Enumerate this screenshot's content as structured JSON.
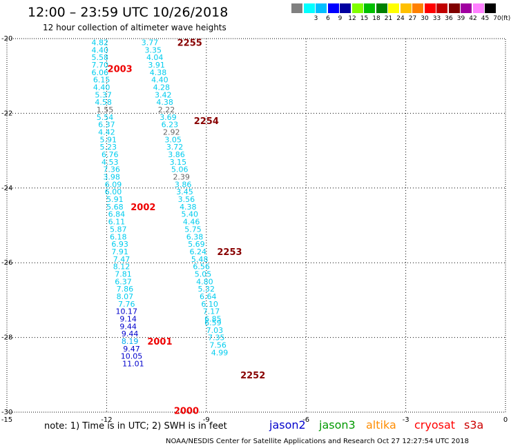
{
  "header": {
    "title": "12:00 – 23:59 UTC 10/26/2018",
    "subtitle": "12 hour collection of altimeter wave heights"
  },
  "legend": {
    "unit": "(ft)",
    "swatches": [
      {
        "color": "#808080",
        "label": ""
      },
      {
        "color": "#00ffff",
        "label": "3"
      },
      {
        "color": "#00bfff",
        "label": "6"
      },
      {
        "color": "#0000ff",
        "label": "9"
      },
      {
        "color": "#0000a0",
        "label": "12"
      },
      {
        "color": "#80ff00",
        "label": "15"
      },
      {
        "color": "#00c000",
        "label": "18"
      },
      {
        "color": "#008000",
        "label": "21"
      },
      {
        "color": "#ffff00",
        "label": "24"
      },
      {
        "color": "#ffc000",
        "label": "27"
      },
      {
        "color": "#ff8000",
        "label": "30"
      },
      {
        "color": "#ff0000",
        "label": "33"
      },
      {
        "color": "#c00000",
        "label": "36"
      },
      {
        "color": "#800000",
        "label": "39"
      },
      {
        "color": "#a000a0",
        "label": "42"
      },
      {
        "color": "#ff80ff",
        "label": "45"
      },
      {
        "color": "#000000",
        "label": "70"
      }
    ]
  },
  "footer": {
    "note": "note: 1) Time is in UTC; 2) SWH is in feet",
    "credit": "NOAA/NESDIS Center for Satellite Applications and Research    Oct 27 12:27:54 UTC 2018",
    "satellites": [
      {
        "name": "jason2",
        "color": "#0000cc"
      },
      {
        "name": "jason3",
        "color": "#009900"
      },
      {
        "name": "altika",
        "color": "#ff8c00"
      },
      {
        "name": "cryosat",
        "color": "#ff0000"
      },
      {
        "name": "s3a",
        "color": "#cc0000"
      }
    ]
  },
  "map": {
    "lon_range": [
      -15,
      0
    ],
    "lat_range": [
      -30,
      -20
    ],
    "lon_ticks": [
      -15,
      -12,
      -9,
      -6,
      -3,
      0
    ],
    "lat_ticks": [
      -20,
      -22,
      -24,
      -26,
      -28,
      -30
    ],
    "grid": "dotted"
  },
  "chart_data": {
    "type": "scatter",
    "title": "12 hour collection of altimeter wave heights",
    "xlim": [
      -15,
      0
    ],
    "ylim": [
      -30,
      -20
    ],
    "tracks": [
      {
        "satellite": "s3a",
        "time_labels": [
          {
            "text": "2003",
            "lon": -11.6,
            "lat": -20.8,
            "color": "#ee0000"
          },
          {
            "text": "2002",
            "lon": -10.9,
            "lat": -24.5,
            "color": "#ee0000"
          },
          {
            "text": "2001",
            "lon": -10.4,
            "lat": -28.1,
            "color": "#ee0000"
          },
          {
            "text": "2000",
            "lon": -9.6,
            "lat": -29.95,
            "color": "#ee0000"
          }
        ],
        "points": [
          {
            "lon": -12.2,
            "lat": -20.1,
            "v": "4.82",
            "c": "#00ccee"
          },
          {
            "lon": -12.2,
            "lat": -20.3,
            "v": "4.40",
            "c": "#00ccee"
          },
          {
            "lon": -12.2,
            "lat": -20.5,
            "v": "5.58",
            "c": "#00ccee"
          },
          {
            "lon": -12.2,
            "lat": -20.7,
            "v": "7.70",
            "c": "#00ccee"
          },
          {
            "lon": -12.2,
            "lat": -20.9,
            "v": "6.06",
            "c": "#00ccee"
          },
          {
            "lon": -12.15,
            "lat": -21.1,
            "v": "6.15",
            "c": "#00ccee"
          },
          {
            "lon": -12.15,
            "lat": -21.3,
            "v": "4.40",
            "c": "#00ccee"
          },
          {
            "lon": -12.1,
            "lat": -21.5,
            "v": "5.37",
            "c": "#00ccee"
          },
          {
            "lon": -12.1,
            "lat": -21.7,
            "v": "4.58",
            "c": "#00ccee"
          },
          {
            "lon": -12.05,
            "lat": -21.9,
            "v": "1.55",
            "c": "#666666"
          },
          {
            "lon": -12.05,
            "lat": -22.1,
            "v": "5.54",
            "c": "#00ccee"
          },
          {
            "lon": -12.0,
            "lat": -22.3,
            "v": "6.37",
            "c": "#00ccee"
          },
          {
            "lon": -12.0,
            "lat": -22.5,
            "v": "4.42",
            "c": "#00ccee"
          },
          {
            "lon": -11.95,
            "lat": -22.7,
            "v": "5.91",
            "c": "#00ccee"
          },
          {
            "lon": -11.95,
            "lat": -22.9,
            "v": "5.23",
            "c": "#00ccee"
          },
          {
            "lon": -11.9,
            "lat": -23.1,
            "v": "6.76",
            "c": "#00ccee"
          },
          {
            "lon": -11.9,
            "lat": -23.3,
            "v": "4.53",
            "c": "#00ccee"
          },
          {
            "lon": -11.85,
            "lat": -23.5,
            "v": "7.36",
            "c": "#00ccee"
          },
          {
            "lon": -11.85,
            "lat": -23.7,
            "v": "3.98",
            "c": "#00ccee"
          },
          {
            "lon": -11.8,
            "lat": -23.9,
            "v": "6.09",
            "c": "#00ccee"
          },
          {
            "lon": -11.8,
            "lat": -24.1,
            "v": "6.00",
            "c": "#00ccee"
          },
          {
            "lon": -11.75,
            "lat": -24.3,
            "v": "5.91",
            "c": "#00ccee"
          },
          {
            "lon": -11.75,
            "lat": -24.5,
            "v": "5.68",
            "c": "#00ccee"
          },
          {
            "lon": -11.7,
            "lat": -24.7,
            "v": "6.84",
            "c": "#00ccee"
          },
          {
            "lon": -11.7,
            "lat": -24.9,
            "v": "6.11",
            "c": "#00ccee"
          },
          {
            "lon": -11.65,
            "lat": -25.1,
            "v": "5.87",
            "c": "#00ccee"
          },
          {
            "lon": -11.65,
            "lat": -25.3,
            "v": "6.18",
            "c": "#00ccee"
          },
          {
            "lon": -11.6,
            "lat": -25.5,
            "v": "6.93",
            "c": "#00ccee"
          },
          {
            "lon": -11.6,
            "lat": -25.7,
            "v": "7.91",
            "c": "#00ccee"
          },
          {
            "lon": -11.55,
            "lat": -25.9,
            "v": "7.47",
            "c": "#00ccee"
          },
          {
            "lon": -11.55,
            "lat": -26.1,
            "v": "8.12",
            "c": "#00ccee"
          },
          {
            "lon": -11.5,
            "lat": -26.3,
            "v": "7.81",
            "c": "#00ccee"
          },
          {
            "lon": -11.5,
            "lat": -26.5,
            "v": "6.37",
            "c": "#00ccee"
          },
          {
            "lon": -11.45,
            "lat": -26.7,
            "v": "7.86",
            "c": "#00ccee"
          },
          {
            "lon": -11.45,
            "lat": -26.9,
            "v": "8.07",
            "c": "#00ccee"
          },
          {
            "lon": -11.4,
            "lat": -27.1,
            "v": "7.76",
            "c": "#00ccee"
          },
          {
            "lon": -11.4,
            "lat": -27.3,
            "v": "10.17",
            "c": "#0000cc"
          },
          {
            "lon": -11.35,
            "lat": -27.5,
            "v": "9.14",
            "c": "#0000cc"
          },
          {
            "lon": -11.35,
            "lat": -27.7,
            "v": "9.44",
            "c": "#0000cc"
          },
          {
            "lon": -11.3,
            "lat": -27.9,
            "v": "9.44",
            "c": "#0000cc"
          },
          {
            "lon": -11.3,
            "lat": -28.1,
            "v": "8.19",
            "c": "#00aaee"
          },
          {
            "lon": -11.25,
            "lat": -28.3,
            "v": "9.47",
            "c": "#0000cc"
          },
          {
            "lon": -11.25,
            "lat": -28.5,
            "v": "10.05",
            "c": "#0000cc"
          },
          {
            "lon": -11.2,
            "lat": -28.7,
            "v": "11.01",
            "c": "#0000cc"
          }
        ]
      },
      {
        "satellite": "cryosat",
        "time_labels": [
          {
            "text": "2255",
            "lon": -9.5,
            "lat": -20.1,
            "color": "#880000"
          },
          {
            "text": "2254",
            "lon": -9.0,
            "lat": -22.2,
            "color": "#880000"
          },
          {
            "text": "2253",
            "lon": -8.3,
            "lat": -25.7,
            "color": "#880000"
          },
          {
            "text": "2252",
            "lon": -7.6,
            "lat": -29.0,
            "color": "#880000"
          }
        ],
        "points": [
          {
            "lon": -10.7,
            "lat": -20.1,
            "v": "3.77",
            "c": "#00ccee"
          },
          {
            "lon": -10.6,
            "lat": -20.3,
            "v": "3.35",
            "c": "#00ccee"
          },
          {
            "lon": -10.55,
            "lat": -20.5,
            "v": "4.04",
            "c": "#00ccee"
          },
          {
            "lon": -10.5,
            "lat": -20.7,
            "v": "3.91",
            "c": "#00ccee"
          },
          {
            "lon": -10.45,
            "lat": -20.9,
            "v": "4.38",
            "c": "#00ccee"
          },
          {
            "lon": -10.4,
            "lat": -21.1,
            "v": "4.40",
            "c": "#00ccee"
          },
          {
            "lon": -10.35,
            "lat": -21.3,
            "v": "4.28",
            "c": "#00ccee"
          },
          {
            "lon": -10.3,
            "lat": -21.5,
            "v": "3.42",
            "c": "#00ccee"
          },
          {
            "lon": -10.25,
            "lat": -21.7,
            "v": "4.38",
            "c": "#00ccee"
          },
          {
            "lon": -10.2,
            "lat": -21.9,
            "v": "2.22",
            "c": "#666666"
          },
          {
            "lon": -10.15,
            "lat": -22.1,
            "v": "3.69",
            "c": "#00ccee"
          },
          {
            "lon": -10.1,
            "lat": -22.3,
            "v": "6.23",
            "c": "#00ccee"
          },
          {
            "lon": -10.05,
            "lat": -22.5,
            "v": "2.92",
            "c": "#666666"
          },
          {
            "lon": -10.0,
            "lat": -22.7,
            "v": "3.05",
            "c": "#00ccee"
          },
          {
            "lon": -9.95,
            "lat": -22.9,
            "v": "3.72",
            "c": "#00ccee"
          },
          {
            "lon": -9.9,
            "lat": -23.1,
            "v": "3.86",
            "c": "#00ccee"
          },
          {
            "lon": -9.85,
            "lat": -23.3,
            "v": "3.15",
            "c": "#00ccee"
          },
          {
            "lon": -9.8,
            "lat": -23.5,
            "v": "5.06",
            "c": "#00ccee"
          },
          {
            "lon": -9.75,
            "lat": -23.7,
            "v": "2.39",
            "c": "#666666"
          },
          {
            "lon": -9.7,
            "lat": -23.9,
            "v": "3.86",
            "c": "#00ccee"
          },
          {
            "lon": -9.65,
            "lat": -24.1,
            "v": "3.45",
            "c": "#00ccee"
          },
          {
            "lon": -9.6,
            "lat": -24.3,
            "v": "3.56",
            "c": "#00ccee"
          },
          {
            "lon": -9.55,
            "lat": -24.5,
            "v": "4.38",
            "c": "#00ccee"
          },
          {
            "lon": -9.5,
            "lat": -24.7,
            "v": "5.40",
            "c": "#00ccee"
          },
          {
            "lon": -9.45,
            "lat": -24.9,
            "v": "4.46",
            "c": "#00ccee"
          },
          {
            "lon": -9.4,
            "lat": -25.1,
            "v": "5.75",
            "c": "#00ccee"
          },
          {
            "lon": -9.35,
            "lat": -25.3,
            "v": "6.38",
            "c": "#00ccee"
          },
          {
            "lon": -9.3,
            "lat": -25.5,
            "v": "5.69",
            "c": "#00ccee"
          },
          {
            "lon": -9.25,
            "lat": -25.7,
            "v": "6.24",
            "c": "#00ccee"
          },
          {
            "lon": -9.2,
            "lat": -25.9,
            "v": "5.48",
            "c": "#00ccee"
          },
          {
            "lon": -9.15,
            "lat": -26.1,
            "v": "6.56",
            "c": "#00ccee"
          },
          {
            "lon": -9.1,
            "lat": -26.3,
            "v": "5.05",
            "c": "#00ccee"
          },
          {
            "lon": -9.05,
            "lat": -26.5,
            "v": "4.80",
            "c": "#00ccee"
          },
          {
            "lon": -9.0,
            "lat": -26.7,
            "v": "5.32",
            "c": "#00ccee"
          },
          {
            "lon": -8.95,
            "lat": -26.9,
            "v": "6.64",
            "c": "#00ccee"
          },
          {
            "lon": -8.9,
            "lat": -27.1,
            "v": "6.10",
            "c": "#00ccee"
          },
          {
            "lon": -8.85,
            "lat": -27.3,
            "v": "7.17",
            "c": "#00ccee"
          },
          {
            "lon": -8.8,
            "lat": -27.5,
            "v": "6.85",
            "c": "#00ccee"
          },
          {
            "lon": -8.8,
            "lat": -27.6,
            "v": "6.59",
            "c": "#00ccee"
          },
          {
            "lon": -8.75,
            "lat": -27.8,
            "v": "7.03",
            "c": "#00ccee"
          },
          {
            "lon": -8.7,
            "lat": -28.0,
            "v": "7.35",
            "c": "#00ccee"
          },
          {
            "lon": -8.65,
            "lat": -28.2,
            "v": "7.56",
            "c": "#00ccee"
          },
          {
            "lon": -8.6,
            "lat": -28.4,
            "v": "4.99",
            "c": "#00ccee"
          }
        ]
      }
    ]
  }
}
